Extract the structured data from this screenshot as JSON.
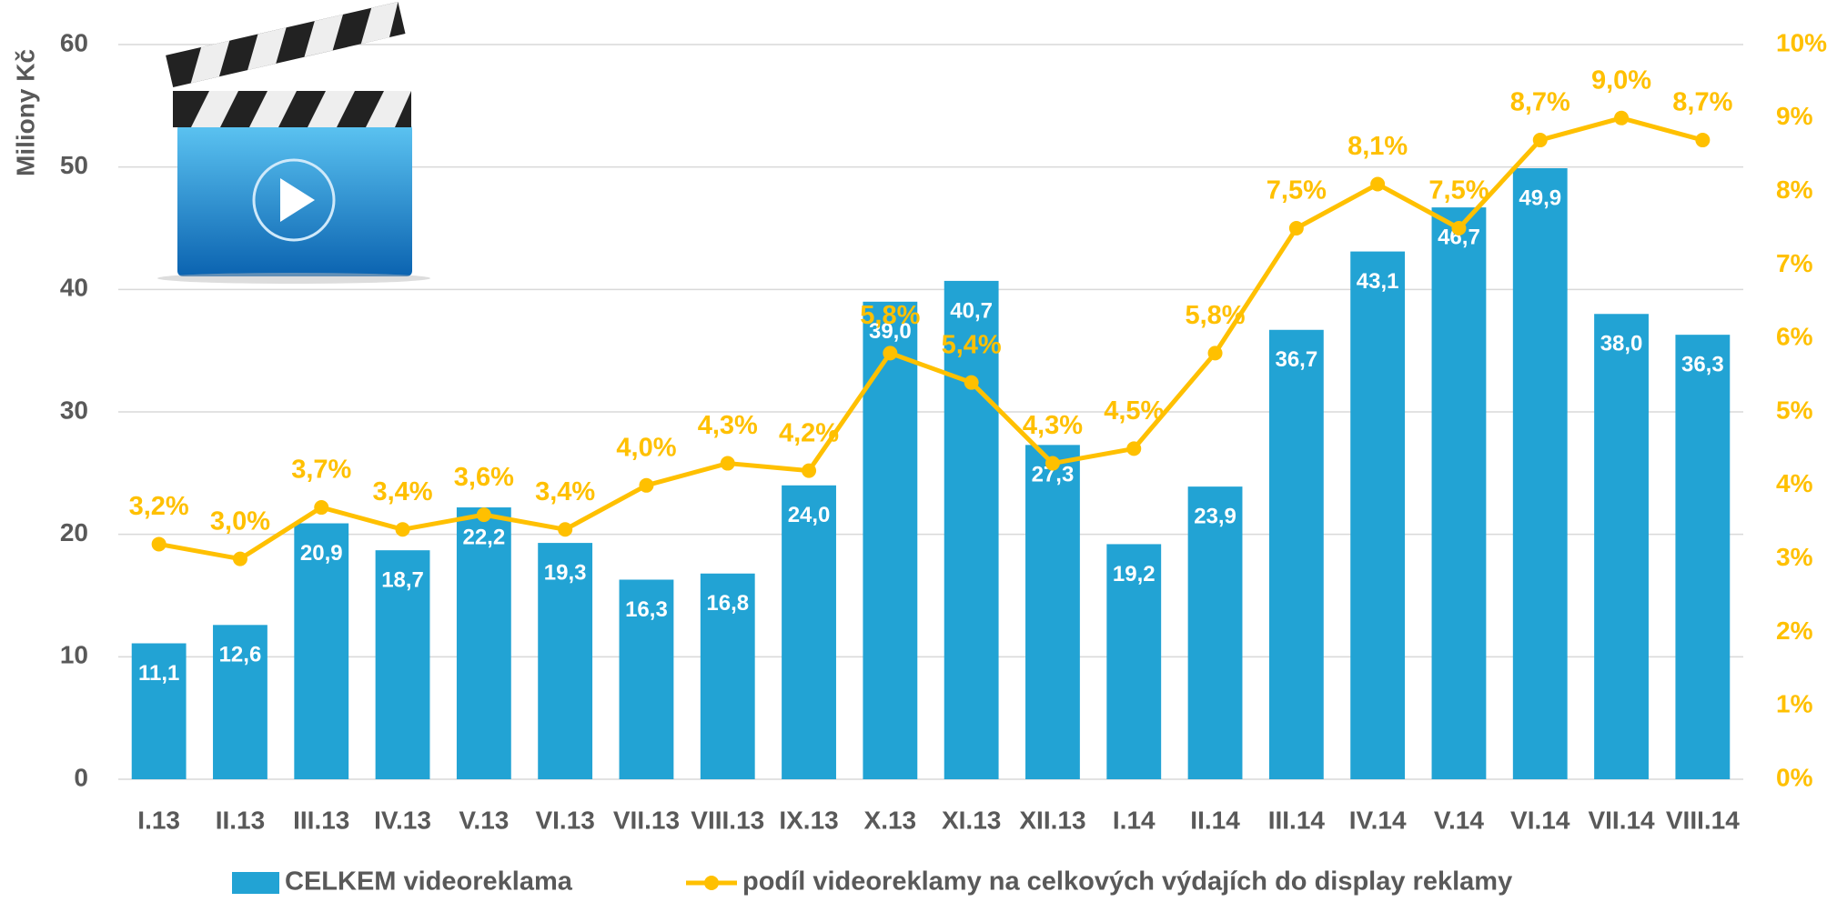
{
  "chart_data": {
    "type": "bar",
    "y_label": "Miliony Kč",
    "categories": [
      "I.13",
      "II.13",
      "III.13",
      "IV.13",
      "V.13",
      "VI.13",
      "VII.13",
      "VIII.13",
      "IX.13",
      "X.13",
      "XI.13",
      "XII.13",
      "I.14",
      "II.14",
      "III.14",
      "IV.14",
      "V.14",
      "VI.14",
      "VII.14",
      "VIII.14"
    ],
    "series": [
      {
        "name": "CELKEM videoreklama",
        "type": "bar",
        "color": "#22a3d4",
        "values": [
          11.1,
          12.6,
          20.9,
          18.7,
          22.2,
          19.3,
          16.3,
          16.8,
          24.0,
          39.0,
          40.7,
          27.3,
          19.2,
          23.9,
          36.7,
          43.1,
          46.7,
          49.9,
          38.0,
          36.3
        ],
        "value_labels": [
          "11,1",
          "12,6",
          "20,9",
          "18,7",
          "22,2",
          "19,3",
          "16,3",
          "16,8",
          "24,0",
          "39,0",
          "40,7",
          "27,3",
          "19,2",
          "23,9",
          "36,7",
          "43,1",
          "46,7",
          "49,9",
          "38,0",
          "36,3"
        ]
      },
      {
        "name": "podíl videoreklamy na celkových výdajích do display reklamy",
        "type": "line",
        "axis": "y2",
        "color": "#ffc000",
        "values": [
          3.2,
          3.0,
          3.7,
          3.4,
          3.6,
          3.4,
          4.0,
          4.3,
          4.2,
          5.8,
          5.4,
          4.3,
          4.5,
          5.8,
          7.5,
          8.1,
          7.5,
          8.7,
          9.0,
          8.7
        ],
        "value_labels": [
          "3,2%",
          "3,0%",
          "3,7%",
          "3,4%",
          "3,6%",
          "3,4%",
          "4,0%",
          "4,3%",
          "4,2%",
          "5,8%",
          "5,4%",
          "4,3%",
          "4,5%",
          "5,8%",
          "7,5%",
          "8,1%",
          "7,5%",
          "8,7%",
          "9,0%",
          "8,7%"
        ]
      }
    ],
    "ylim": [
      0,
      60
    ],
    "yticks": [
      0,
      10,
      20,
      30,
      40,
      50,
      60
    ],
    "y2lim": [
      0,
      10
    ],
    "y2ticks": [
      {
        "value": 0,
        "label": "0%"
      },
      {
        "value": 1,
        "label": "1%"
      },
      {
        "value": 2,
        "label": "2%"
      },
      {
        "value": 3,
        "label": "3%"
      },
      {
        "value": 4,
        "label": "4%"
      },
      {
        "value": 5,
        "label": "5%"
      },
      {
        "value": 6,
        "label": "6%"
      },
      {
        "value": 7,
        "label": "7%"
      },
      {
        "value": 8,
        "label": "8%"
      },
      {
        "value": 9,
        "label": "9%"
      },
      {
        "value": 10,
        "label": "10%"
      }
    ],
    "grid": true,
    "legend": "bottom"
  }
}
